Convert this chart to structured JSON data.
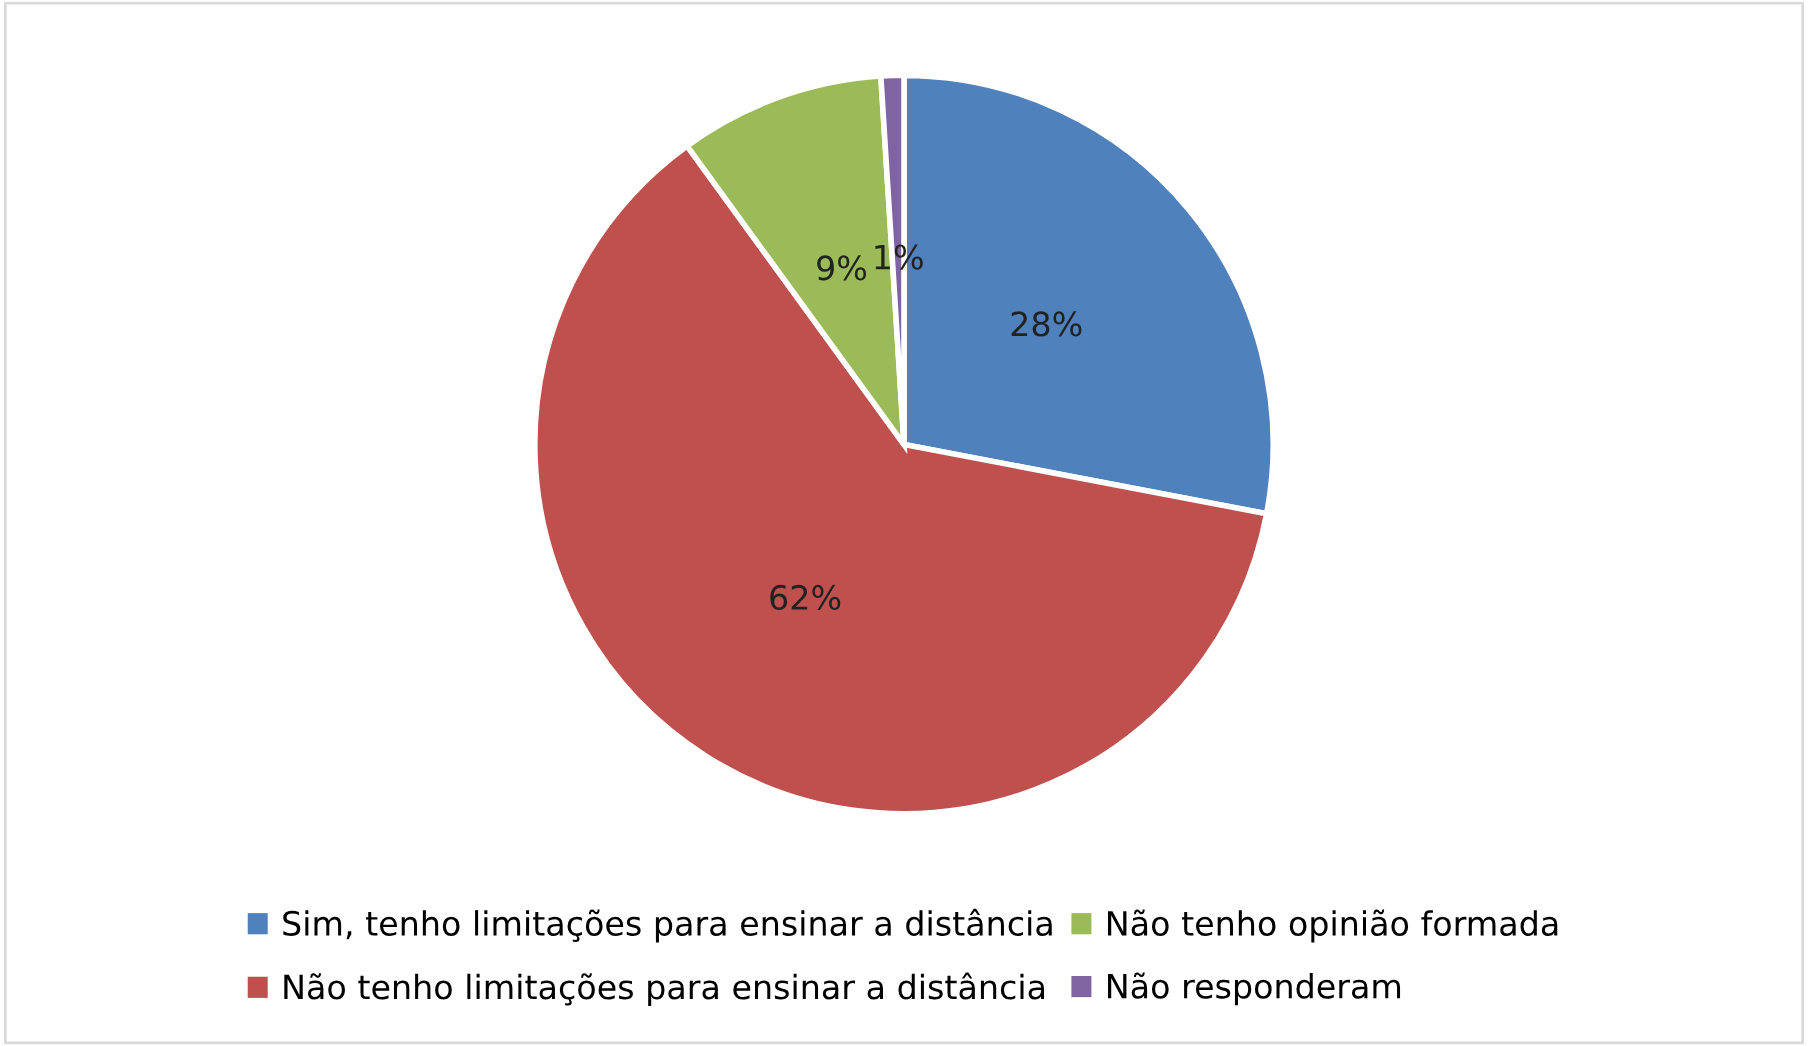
{
  "chart_data": {
    "type": "pie",
    "categories": [
      "Sim, tenho limitações para ensinar a distância",
      "Não tenho limitações para ensinar a distância",
      "Não tenho opinião formada",
      "Não responderam"
    ],
    "values": [
      28,
      62,
      9,
      1
    ],
    "colors": [
      "#4f81bd",
      "#c0504d",
      "#9bbb59",
      "#8064a2"
    ],
    "value_labels": [
      "28%",
      "62%",
      "9%",
      "1%"
    ],
    "legend": "bottom"
  }
}
